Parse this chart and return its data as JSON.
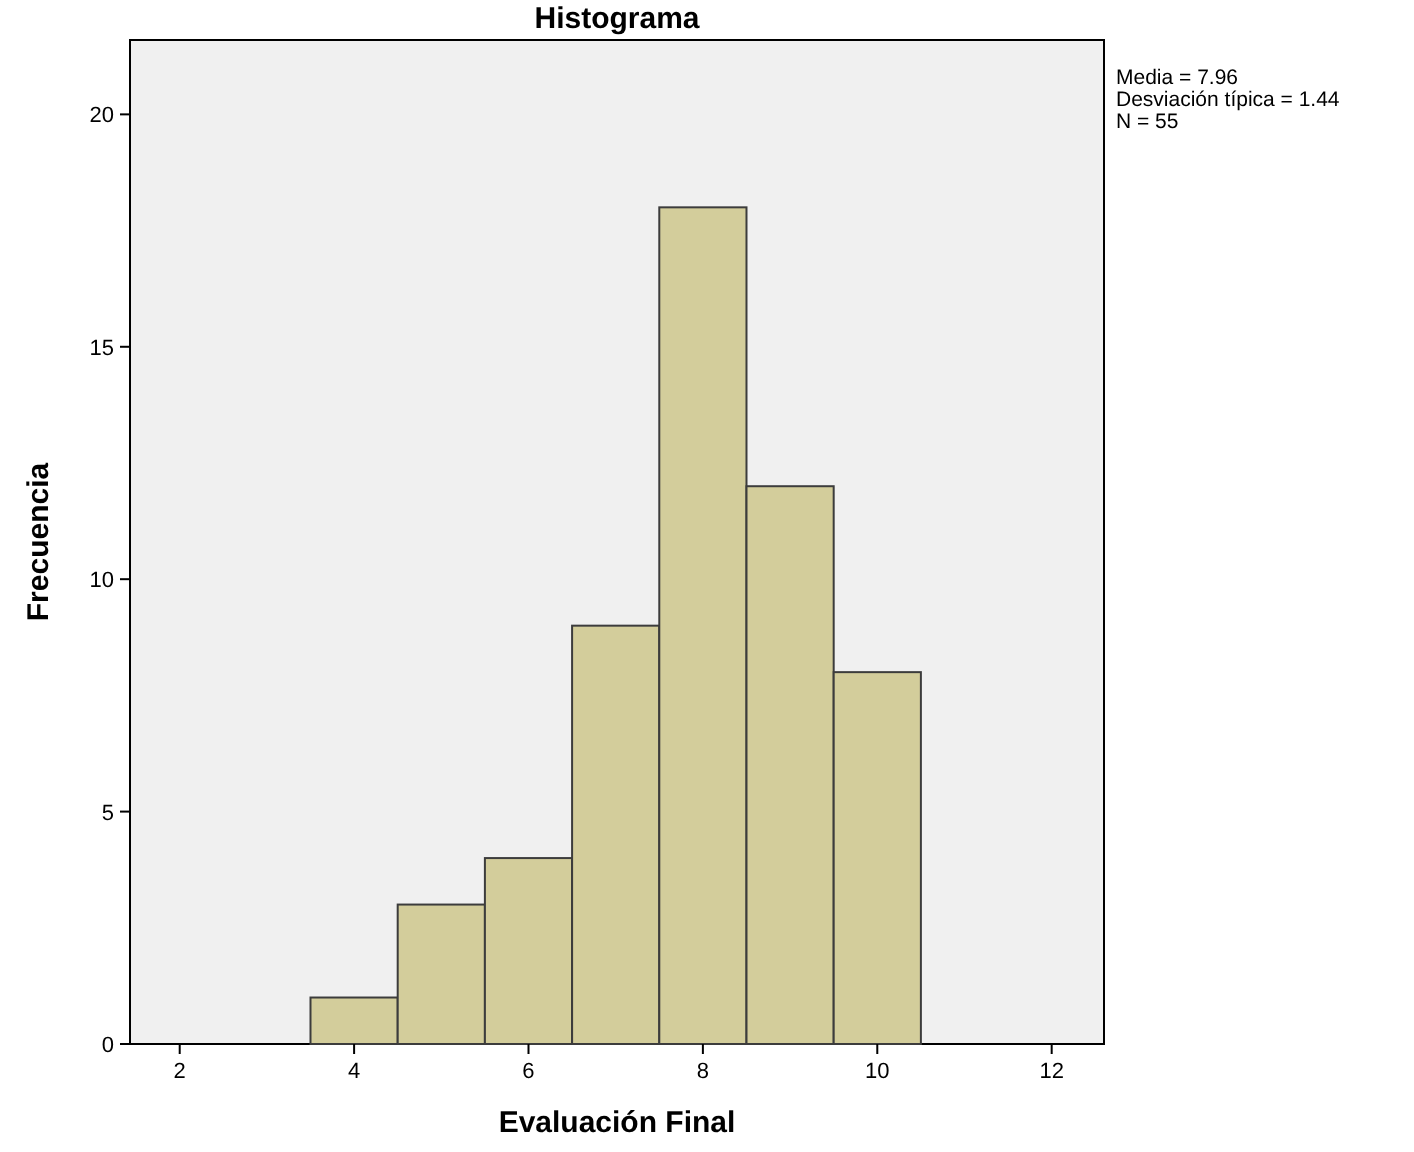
{
  "chart_data": {
    "type": "histogram",
    "title": "Histograma",
    "xlabel": "Evaluación Final",
    "ylabel": "Frecuencia",
    "bins": [
      3.5,
      4.5,
      5.5,
      6.5,
      7.5,
      8.5,
      9.5,
      10.5
    ],
    "values": [
      1,
      3,
      4,
      9,
      18,
      12,
      8
    ],
    "color": "#d3cd9b",
    "xlim": [
      1.43,
      12.6
    ],
    "xticks": [
      2,
      4,
      6,
      8,
      10,
      12
    ],
    "ylim": [
      0,
      21.6
    ],
    "yticks": [
      0,
      5,
      10,
      15,
      20
    ],
    "annotations": [
      "Media = 7.96",
      "Desviación típica = 1.44",
      "N = 55"
    ]
  }
}
